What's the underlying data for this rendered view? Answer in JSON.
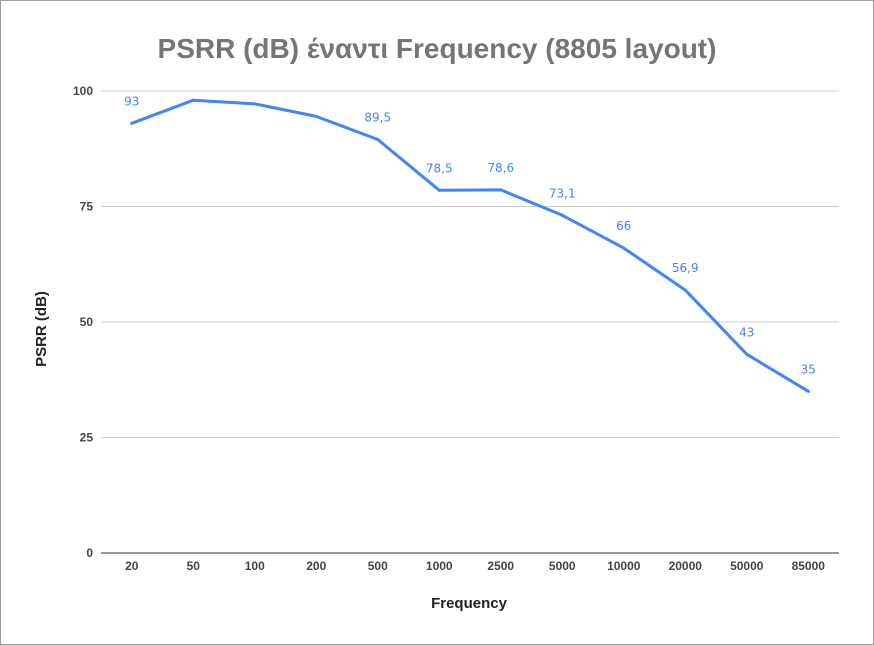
{
  "chart_data": {
    "type": "line",
    "title": "PSRR (dB) έναντι Frequency (8805 layout)",
    "xlabel": "Frequency",
    "ylabel": "PSRR (dB)",
    "categories": [
      "20",
      "50",
      "100",
      "200",
      "500",
      "1000",
      "2500",
      "5000",
      "10000",
      "20000",
      "50000",
      "85000"
    ],
    "series": [
      {
        "values": [
          93,
          98,
          97.2,
          94.5,
          89.5,
          78.5,
          78.6,
          73.1,
          66,
          56.9,
          43,
          35
        ],
        "data_labels": [
          "93",
          "",
          "",
          "",
          "89,5",
          "78,5",
          "78,6",
          "73,1",
          "66",
          "56,9",
          "43",
          "35"
        ],
        "color": "#4285f4"
      }
    ],
    "ylim": [
      0,
      100
    ],
    "yticks": [
      0,
      25,
      50,
      75,
      100
    ],
    "grid": true,
    "legend": "none"
  }
}
